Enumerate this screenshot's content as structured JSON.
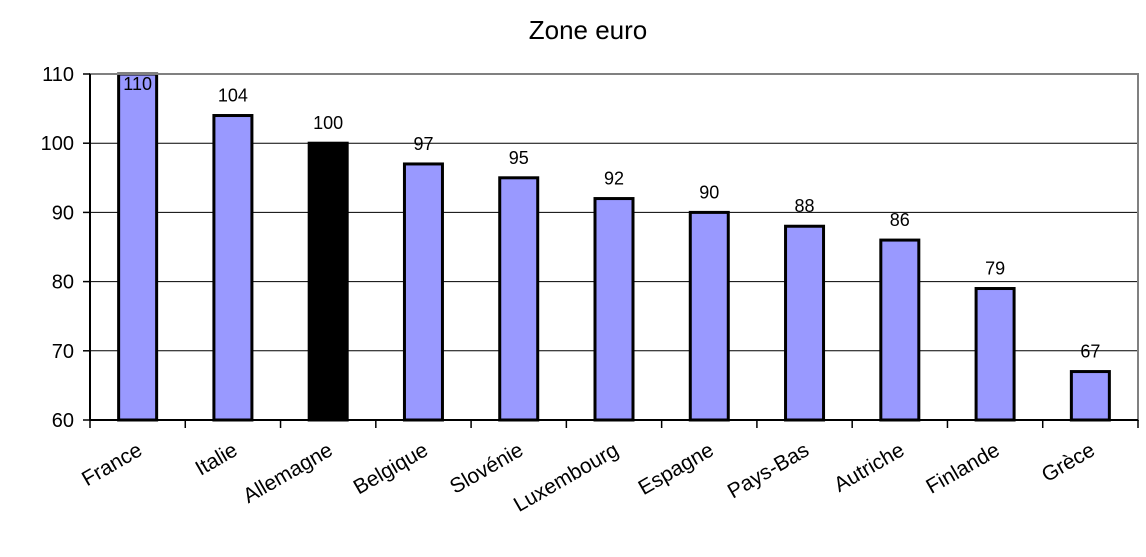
{
  "chart_data": {
    "type": "bar",
    "title": "Zone euro",
    "xlabel": "",
    "ylabel": "",
    "categories": [
      "France",
      "Italie",
      "Allemagne",
      "Belgique",
      "Slovénie",
      "Luxembourg",
      "Espagne",
      "Pays-Bas",
      "Autriche",
      "Finlande",
      "Grèce"
    ],
    "values": [
      110,
      104,
      100,
      97,
      95,
      92,
      90,
      88,
      86,
      79,
      67
    ],
    "data_labels": [
      "110",
      "104",
      "100",
      "97",
      "95",
      "92",
      "90",
      "88",
      "86",
      "79",
      "67"
    ],
    "ylim": [
      60,
      110
    ],
    "yticks": [
      60,
      70,
      80,
      90,
      100,
      110
    ],
    "ytick_labels": [
      "60",
      "70",
      "80",
      "90",
      "100",
      "110"
    ],
    "grid": true,
    "legend": "none",
    "colors": {
      "bar": "#9999ff",
      "highlight": "#000000",
      "highlight_category": "Allemagne",
      "bar_outline": "#000000",
      "gridline": "#000000",
      "plot_border": "#808080"
    }
  }
}
